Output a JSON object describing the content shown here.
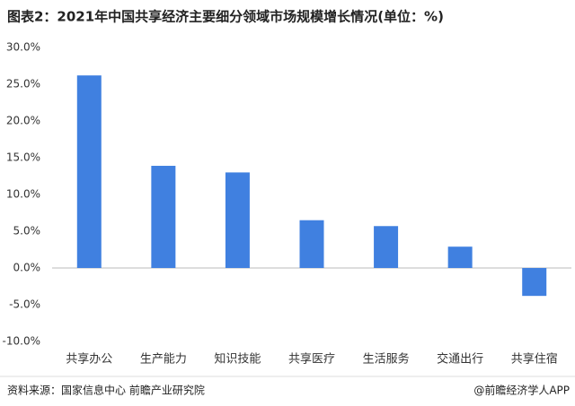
{
  "chart_data": {
    "type": "bar",
    "title": "图表2：2021年中国共享经济主要细分领域市场规模增长情况(单位：%)",
    "categories": [
      "共享办公",
      "生产能力",
      "知识技能",
      "共享医疗",
      "生活服务",
      "交通出行",
      "共享住宿"
    ],
    "values": [
      26.2,
      13.9,
      13.0,
      6.5,
      5.7,
      2.9,
      -3.8
    ],
    "color": "#4080e0",
    "ylim": [
      -10,
      30
    ],
    "yticks": [
      {
        "value": -10,
        "label": "-10.0%"
      },
      {
        "value": -5,
        "label": "-5.0%"
      },
      {
        "value": 0,
        "label": "0.0%"
      },
      {
        "value": 5,
        "label": "5.0%"
      },
      {
        "value": 10,
        "label": "10.0%"
      },
      {
        "value": 15,
        "label": "15.0%"
      },
      {
        "value": 20,
        "label": "20.0%"
      },
      {
        "value": 25,
        "label": "25.0%"
      },
      {
        "value": 30,
        "label": "30.0%"
      }
    ],
    "grid": false,
    "source": "资料来源：国家信息中心 前瞻产业研究院",
    "credit": "@前瞻经济学人APP"
  }
}
